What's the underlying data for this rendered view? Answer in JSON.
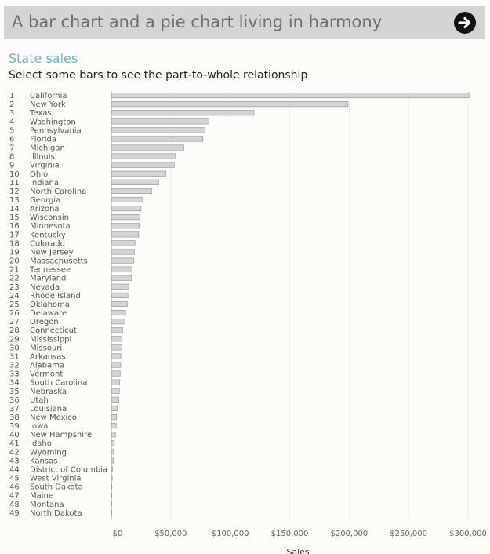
{
  "header": {
    "title": "A bar chart and a pie chart living in harmony",
    "next_icon": "arrow-right-circle-icon"
  },
  "sheet": {
    "title": "State sales",
    "subtitle": "Select some bars to see the part-to-whole relationship"
  },
  "colors": {
    "bar_fill": "#d4d4d4",
    "bar_stroke": "#8f8f8f",
    "title_teal": "#6fb7b3",
    "header_bg": "#d4d4d4"
  },
  "chart_data": {
    "type": "bar",
    "orientation": "horizontal",
    "xlabel": "Sales",
    "xlim": [
      0,
      300000
    ],
    "xticks": [
      0,
      50000,
      100000,
      150000,
      200000,
      250000,
      300000
    ],
    "xtick_labels": [
      "$0",
      "$50,000",
      "$100,000",
      "$150,000",
      "$200,000",
      "$250,000",
      "$300,000"
    ],
    "grid": true,
    "categories": [
      "California",
      "New York",
      "Texas",
      "Washington",
      "Pennsylvania",
      "Florida",
      "Michigan",
      "Illinois",
      "Virginia",
      "Ohio",
      "Indiana",
      "North Carolina",
      "Georgia",
      "Arizona",
      "Wisconsin",
      "Minnesota",
      "Kentucky",
      "Colorado",
      "New Jersey",
      "Massachusetts",
      "Tennessee",
      "Maryland",
      "Nevada",
      "Rhode Island",
      "Oklahoma",
      "Delaware",
      "Oregon",
      "Connecticut",
      "Mississippi",
      "Missouri",
      "Arkansas",
      "Alabama",
      "Vermont",
      "South Carolina",
      "Nebraska",
      "Utah",
      "Louisiana",
      "New Mexico",
      "Iowa",
      "New Hampshire",
      "Idaho",
      "Wyoming",
      "Kansas",
      "District of Columbia",
      "West Virginia",
      "South Dakota",
      "Maine",
      "Montana",
      "North Dakota"
    ],
    "values": [
      301000,
      199000,
      120000,
      82000,
      79000,
      77000,
      61000,
      54000,
      53000,
      46000,
      40000,
      34000,
      26000,
      25000,
      24000,
      23500,
      23000,
      20000,
      19500,
      19000,
      17500,
      17000,
      15000,
      14000,
      13500,
      12000,
      11500,
      9500,
      9000,
      9000,
      8000,
      8000,
      7500,
      7000,
      6800,
      6300,
      5000,
      4500,
      4200,
      3500,
      2500,
      2000,
      1700,
      1000,
      800,
      350,
      300,
      250,
      200
    ]
  }
}
